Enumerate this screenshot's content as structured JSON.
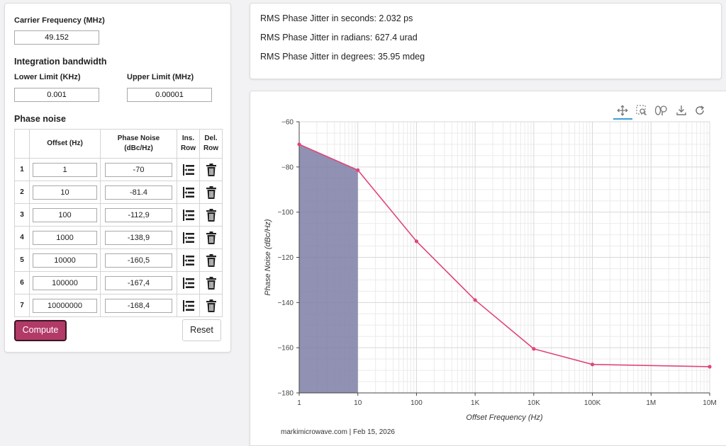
{
  "carrier": {
    "label": "Carrier Frequency (MHz)",
    "value": "49.152"
  },
  "integration": {
    "heading": "Integration bandwidth",
    "lower_label": "Lower Limit (KHz)",
    "lower_value": "0.001",
    "upper_label": "Upper Limit (MHz)",
    "upper_value": "0.00001"
  },
  "phase_noise": {
    "heading": "Phase noise",
    "headers": {
      "offset": "Offset (Hz)",
      "noise_l1": "Phase Noise",
      "noise_l2": "(dBc/Hz)",
      "ins_l1": "Ins.",
      "ins_l2": "Row",
      "del_l1": "Del.",
      "del_l2": "Row"
    },
    "rows": [
      {
        "n": "1",
        "offset": "1",
        "noise": "-70"
      },
      {
        "n": "2",
        "offset": "10",
        "noise": "-81.4"
      },
      {
        "n": "3",
        "offset": "100",
        "noise": "-112,9"
      },
      {
        "n": "4",
        "offset": "1000",
        "noise": "-138,9"
      },
      {
        "n": "5",
        "offset": "10000",
        "noise": "-160,5"
      },
      {
        "n": "6",
        "offset": "100000",
        "noise": "-167,4"
      },
      {
        "n": "7",
        "offset": "10000000",
        "noise": "-168,4"
      }
    ],
    "insert_icon": "insert-row-icon",
    "delete_icon": "trash-icon"
  },
  "buttons": {
    "compute": "Compute",
    "reset": "Reset"
  },
  "results": {
    "seconds": "RMS Phase Jitter in seconds: 2.032 ps",
    "radians": "RMS Phase Jitter in radians: 627.4 urad",
    "degrees": "RMS Phase Jitter in degrees: 35.95 mdeg"
  },
  "toolbar": [
    "pan-icon",
    "box-zoom-icon",
    "wheel-zoom-icon",
    "save-icon",
    "reset-icon"
  ],
  "footer": "markimicrowave.com | Feb 15, 2026",
  "colors": {
    "accent": "#b23a66",
    "line": "#e0457b",
    "fill": "#7e7ea6"
  },
  "chart_data": {
    "type": "line",
    "title": "",
    "xlabel": "Offset Frequency (Hz)",
    "ylabel": "Phase Noise (dBc/Hz)",
    "x_scale": "log",
    "xlim": [
      1,
      10000000
    ],
    "ylim": [
      -180,
      -60
    ],
    "x_ticks": [
      1,
      10,
      100,
      1000,
      10000,
      100000,
      1000000,
      10000000
    ],
    "x_tick_labels": [
      "1",
      "10",
      "100",
      "1K",
      "10K",
      "100K",
      "1M",
      "10M"
    ],
    "y_ticks": [
      -60,
      -80,
      -100,
      -120,
      -140,
      -160,
      -180
    ],
    "y_tick_labels": [
      "−60",
      "−80",
      "−100",
      "−120",
      "−140",
      "−160",
      "−180"
    ],
    "grid": true,
    "series": [
      {
        "x": [
          1,
          10,
          100,
          1000,
          10000,
          100000,
          10000000
        ],
        "values": [
          -70,
          -81.4,
          -112.9,
          -138.9,
          -160.5,
          -167.4,
          -168.4
        ]
      }
    ],
    "shaded_region": {
      "x": [
        1,
        10
      ]
    }
  }
}
